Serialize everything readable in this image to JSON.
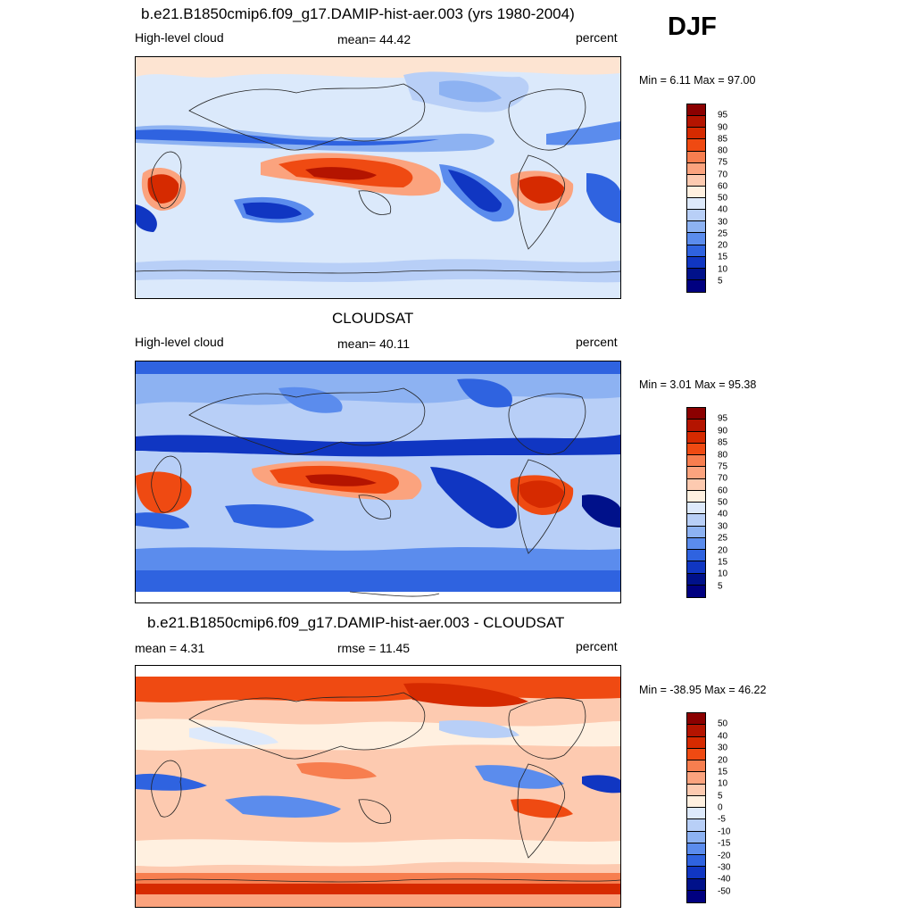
{
  "season": "DJF",
  "panels": [
    {
      "id": "model",
      "title": "b.e21.B1850cmip6.f09_g17.DAMIP-hist-aer.003 (yrs 1980-2004)",
      "left_label": "High-level cloud",
      "center_label": "mean=  44.42",
      "right_label": "percent",
      "minmax": "Min =   6.11 Max =  97.00",
      "colorbar_labels": [
        "95",
        "90",
        "85",
        "80",
        "75",
        "70",
        "60",
        "50",
        "40",
        "30",
        "25",
        "20",
        "15",
        "10",
        "5"
      ],
      "colorbar_colors": [
        "#8b0000",
        "#b41400",
        "#d62a00",
        "#ef4a12",
        "#f77e4f",
        "#fba37e",
        "#fdcab0",
        "#fff0e0",
        "#dde9fb",
        "#b8cff7",
        "#8db2f2",
        "#5b8ced",
        "#2f63e0",
        "#1036c2",
        "#00118a",
        "#000080"
      ]
    },
    {
      "id": "obs",
      "title": "CLOUDSAT",
      "left_label": "High-level cloud",
      "center_label": "mean=  40.11",
      "right_label": "percent",
      "minmax": "Min =   3.01 Max =  95.38",
      "colorbar_labels": [
        "95",
        "90",
        "85",
        "80",
        "75",
        "70",
        "60",
        "50",
        "40",
        "30",
        "25",
        "20",
        "15",
        "10",
        "5"
      ],
      "colorbar_colors": [
        "#8b0000",
        "#b41400",
        "#d62a00",
        "#ef4a12",
        "#f77e4f",
        "#fba37e",
        "#fdcab0",
        "#fff0e0",
        "#dde9fb",
        "#b8cff7",
        "#8db2f2",
        "#5b8ced",
        "#2f63e0",
        "#1036c2",
        "#00118a",
        "#000080"
      ]
    },
    {
      "id": "diff",
      "title": "b.e21.B1850cmip6.f09_g17.DAMIP-hist-aer.003 - CLOUDSAT",
      "left_label": "mean =   4.31",
      "center_label": "rmse =  11.45",
      "right_label": "percent",
      "minmax": "Min = -38.95 Max =  46.22",
      "colorbar_labels": [
        "50",
        "40",
        "30",
        "20",
        "15",
        "10",
        "5",
        "0",
        "-5",
        "-10",
        "-15",
        "-20",
        "-30",
        "-40",
        "-50"
      ],
      "colorbar_colors": [
        "#8b0000",
        "#b41400",
        "#d62a00",
        "#ef4a12",
        "#f77e4f",
        "#fba37e",
        "#fdcab0",
        "#fff0e0",
        "#dde9fb",
        "#b8cff7",
        "#8db2f2",
        "#5b8ced",
        "#2f63e0",
        "#1036c2",
        "#00118a",
        "#000080"
      ]
    }
  ]
}
